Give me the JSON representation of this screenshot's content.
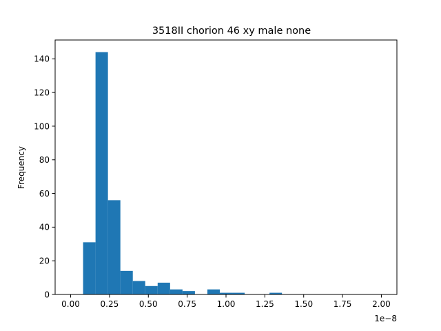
{
  "chart_data": {
    "type": "bar",
    "title": "3518II chorion 46 xy male none",
    "xlabel": "",
    "ylabel": "Frequency",
    "x_multiplier_label": "1e−8",
    "xlim": [
      -0.1,
      2.1
    ],
    "ylim": [
      0,
      151.2
    ],
    "x_ticks": [
      0.0,
      0.25,
      0.5,
      0.75,
      1.0,
      1.25,
      1.5,
      1.75,
      2.0
    ],
    "x_tick_labels": [
      "0.00",
      "0.25",
      "0.50",
      "0.75",
      "1.00",
      "1.25",
      "1.50",
      "1.75",
      "2.00"
    ],
    "y_ticks": [
      0,
      20,
      40,
      60,
      80,
      100,
      120,
      140
    ],
    "y_tick_labels": [
      "0",
      "20",
      "40",
      "60",
      "80",
      "100",
      "120",
      "140"
    ],
    "bar_color": "#1f77b4",
    "bins": [
      {
        "x0": 0.08,
        "x1": 0.16,
        "count": 31
      },
      {
        "x0": 0.16,
        "x1": 0.24,
        "count": 144
      },
      {
        "x0": 0.24,
        "x1": 0.32,
        "count": 56
      },
      {
        "x0": 0.32,
        "x1": 0.4,
        "count": 14
      },
      {
        "x0": 0.4,
        "x1": 0.48,
        "count": 8
      },
      {
        "x0": 0.48,
        "x1": 0.56,
        "count": 5
      },
      {
        "x0": 0.56,
        "x1": 0.64,
        "count": 7
      },
      {
        "x0": 0.64,
        "x1": 0.72,
        "count": 3
      },
      {
        "x0": 0.72,
        "x1": 0.8,
        "count": 2
      },
      {
        "x0": 0.88,
        "x1": 0.96,
        "count": 3
      },
      {
        "x0": 0.96,
        "x1": 1.04,
        "count": 1
      },
      {
        "x0": 1.04,
        "x1": 1.12,
        "count": 1
      },
      {
        "x0": 1.28,
        "x1": 1.36,
        "count": 1
      }
    ],
    "grid": false,
    "legend": "none"
  }
}
